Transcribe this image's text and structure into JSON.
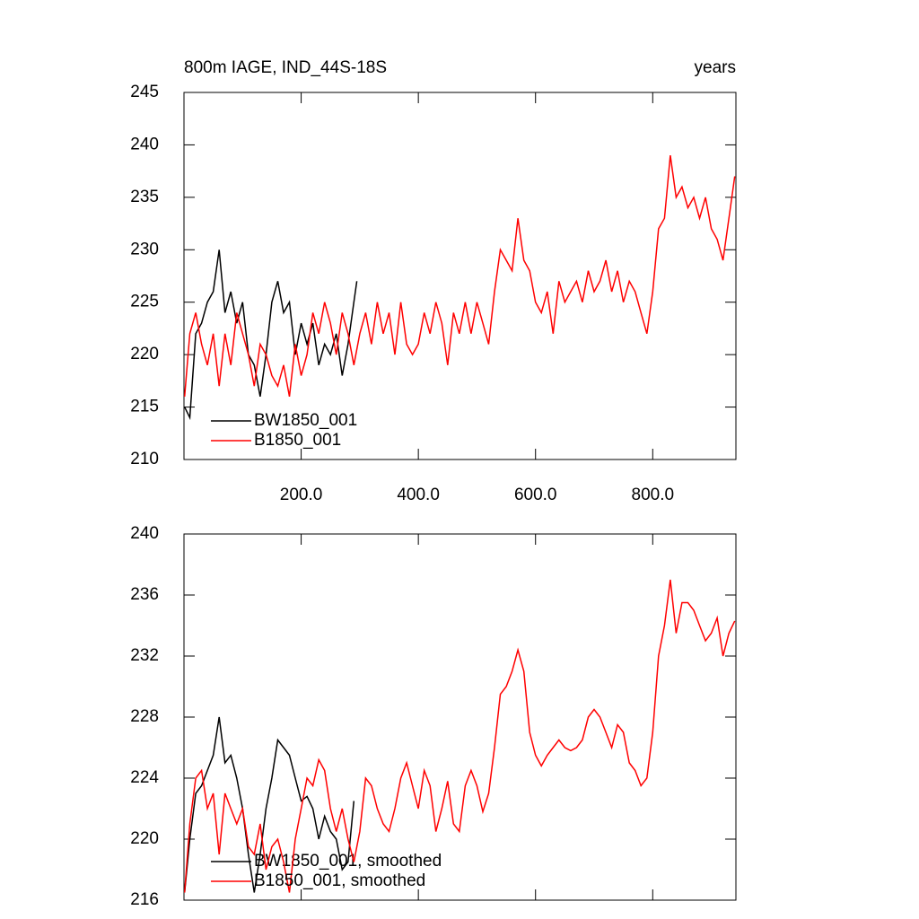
{
  "chart_data": [
    {
      "type": "line",
      "title": "800m IAGE, IND_44S-18S",
      "units": "years",
      "xlim": [
        0,
        942
      ],
      "xticks": [
        {
          "value": 200,
          "label": "200.0"
        },
        {
          "value": 400,
          "label": "400.0"
        },
        {
          "value": 600,
          "label": "600.0"
        },
        {
          "value": 800,
          "label": "800.0"
        }
      ],
      "xtick_labels": true,
      "ylim": [
        210,
        245
      ],
      "yticks": [
        210,
        215,
        220,
        225,
        230,
        235,
        240,
        245
      ],
      "legend": "lower left",
      "series": [
        {
          "name": "BW1850_001",
          "color": "#000000",
          "x": [
            1,
            10,
            20,
            30,
            40,
            50,
            60,
            70,
            80,
            90,
            100,
            110,
            120,
            130,
            140,
            150,
            160,
            170,
            180,
            190,
            200,
            210,
            220,
            230,
            240,
            250,
            260,
            270,
            280,
            290,
            295
          ],
          "values": [
            215,
            214,
            222,
            223,
            225,
            226,
            230,
            224,
            226,
            223,
            225,
            220,
            219,
            216,
            220,
            225,
            227,
            224,
            225,
            220,
            223,
            221,
            223,
            219,
            221,
            220,
            222,
            218,
            221,
            225,
            227
          ]
        },
        {
          "name": "B1850_001",
          "color": "#ff0000",
          "x": [
            1,
            10,
            20,
            30,
            40,
            50,
            60,
            70,
            80,
            90,
            100,
            110,
            120,
            130,
            140,
            150,
            160,
            170,
            180,
            190,
            200,
            210,
            220,
            230,
            240,
            250,
            260,
            270,
            280,
            290,
            300,
            310,
            320,
            330,
            340,
            350,
            360,
            370,
            380,
            390,
            400,
            410,
            420,
            430,
            440,
            450,
            460,
            470,
            480,
            490,
            500,
            510,
            520,
            530,
            540,
            550,
            560,
            570,
            580,
            590,
            600,
            610,
            620,
            630,
            640,
            650,
            660,
            670,
            680,
            690,
            700,
            710,
            720,
            730,
            740,
            750,
            760,
            770,
            780,
            790,
            800,
            810,
            820,
            830,
            840,
            850,
            860,
            870,
            880,
            890,
            900,
            910,
            920,
            930,
            940
          ],
          "values": [
            216,
            222,
            224,
            221,
            219,
            222,
            217,
            222,
            219,
            224,
            222,
            220,
            217,
            221,
            220,
            218,
            217,
            219,
            216,
            221,
            218,
            220,
            224,
            222,
            225,
            223,
            220,
            224,
            222,
            219,
            222,
            224,
            221,
            225,
            222,
            224,
            220,
            225,
            221,
            220,
            221,
            224,
            222,
            225,
            223,
            219,
            224,
            222,
            225,
            222,
            225,
            223,
            221,
            226,
            230,
            229,
            228,
            233,
            229,
            228,
            225,
            224,
            226,
            222,
            227,
            225,
            226,
            227,
            225,
            228,
            226,
            227,
            229,
            226,
            228,
            225,
            227,
            226,
            224,
            222,
            226,
            232,
            233,
            239,
            235,
            236,
            234,
            235,
            233,
            235,
            232,
            231,
            229,
            233,
            237
          ]
        }
      ]
    },
    {
      "type": "line",
      "xlim": [
        0,
        942
      ],
      "xticks": [
        200,
        400,
        600,
        800
      ],
      "xtick_labels": false,
      "ylim": [
        216,
        240
      ],
      "yticks": [
        216,
        220,
        224,
        228,
        232,
        236,
        240
      ],
      "legend": "lower left",
      "series": [
        {
          "name": "BW1850_001, smoothed",
          "color": "#000000",
          "x": [
            1,
            10,
            20,
            30,
            40,
            50,
            60,
            70,
            80,
            90,
            100,
            110,
            120,
            130,
            140,
            150,
            160,
            170,
            180,
            190,
            200,
            210,
            220,
            230,
            240,
            250,
            260,
            270,
            280,
            290
          ],
          "values": [
            216.5,
            220,
            223,
            223.5,
            224.5,
            225.5,
            228,
            225,
            225.5,
            224,
            222,
            219,
            216.5,
            219,
            222,
            224,
            226.5,
            226,
            225.5,
            224,
            222.5,
            222.8,
            222,
            220,
            221.5,
            220.5,
            220,
            218,
            218.5,
            222.5
          ]
        },
        {
          "name": "B1850_001, smoothed",
          "color": "#ff0000",
          "x": [
            1,
            10,
            20,
            30,
            40,
            50,
            60,
            70,
            80,
            90,
            100,
            110,
            120,
            130,
            140,
            150,
            160,
            170,
            180,
            190,
            200,
            210,
            220,
            230,
            240,
            250,
            260,
            270,
            280,
            290,
            300,
            310,
            320,
            330,
            340,
            350,
            360,
            370,
            380,
            390,
            400,
            410,
            420,
            430,
            440,
            450,
            460,
            470,
            480,
            490,
            500,
            510,
            520,
            530,
            540,
            550,
            560,
            570,
            580,
            590,
            600,
            610,
            620,
            630,
            640,
            650,
            660,
            670,
            680,
            690,
            700,
            710,
            720,
            730,
            740,
            750,
            760,
            770,
            780,
            790,
            800,
            810,
            820,
            830,
            840,
            850,
            860,
            870,
            880,
            890,
            900,
            910,
            920,
            930,
            940
          ],
          "values": [
            216.5,
            221,
            224,
            224.5,
            222,
            223,
            219,
            223,
            222,
            221,
            222,
            219.5,
            219,
            221,
            218,
            219.5,
            220,
            218.5,
            216.5,
            220,
            222,
            224,
            223.5,
            225.2,
            224.5,
            222,
            220.5,
            222,
            220,
            218.5,
            220.5,
            224,
            223.5,
            222,
            221,
            220.5,
            222,
            224,
            225,
            223.5,
            222,
            224.5,
            223.5,
            220.5,
            222,
            223.8,
            221,
            220.5,
            223.5,
            224.5,
            223.5,
            221.8,
            223,
            226,
            229.5,
            230,
            231,
            232.4,
            231,
            227,
            225.5,
            224.8,
            225.5,
            226,
            226.5,
            226,
            225.8,
            226,
            226.5,
            228,
            228.5,
            228,
            227,
            226,
            227.5,
            227,
            225,
            224.5,
            223.5,
            224,
            227,
            232,
            234,
            237,
            233.5,
            235.5,
            235.5,
            235,
            234,
            233,
            233.5,
            234.5,
            232,
            233.5,
            234.3
          ]
        }
      ]
    }
  ]
}
